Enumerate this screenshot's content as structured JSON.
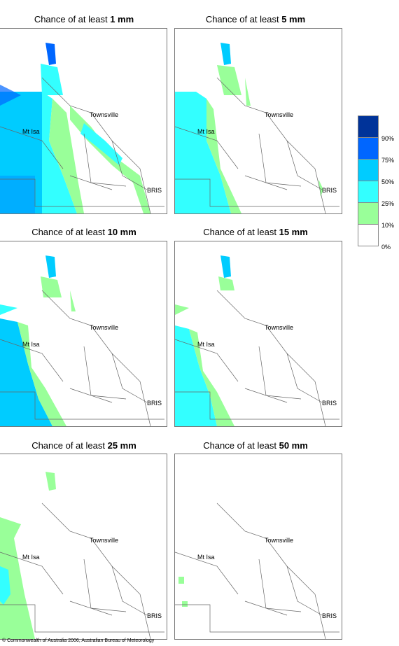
{
  "panels": [
    {
      "title_prefix": "Chance of at least ",
      "title_value": "1 mm"
    },
    {
      "title_prefix": "Chance of at least ",
      "title_value": "5 mm"
    },
    {
      "title_prefix": "Chance of at least ",
      "title_value": "10 mm"
    },
    {
      "title_prefix": "Chance of at least ",
      "title_value": "15 mm"
    },
    {
      "title_prefix": "Chance of at least ",
      "title_value": "25 mm"
    },
    {
      "title_prefix": "Chance of at least ",
      "title_value": "50 mm"
    }
  ],
  "places": {
    "townsville": "Townsville",
    "mt_isa": "Mt Isa",
    "bris": "BRIS"
  },
  "legend": {
    "labels": [
      "90%",
      "75%",
      "50%",
      "25%",
      "10%",
      "0%"
    ],
    "colors": [
      "#003399",
      "#0066ff",
      "#00ccff",
      "#33ffff",
      "#99ff99",
      "#ffffff"
    ]
  },
  "copyright": "© Commonwealth of Australia 2006, Australian Bureau of Meteorology"
}
